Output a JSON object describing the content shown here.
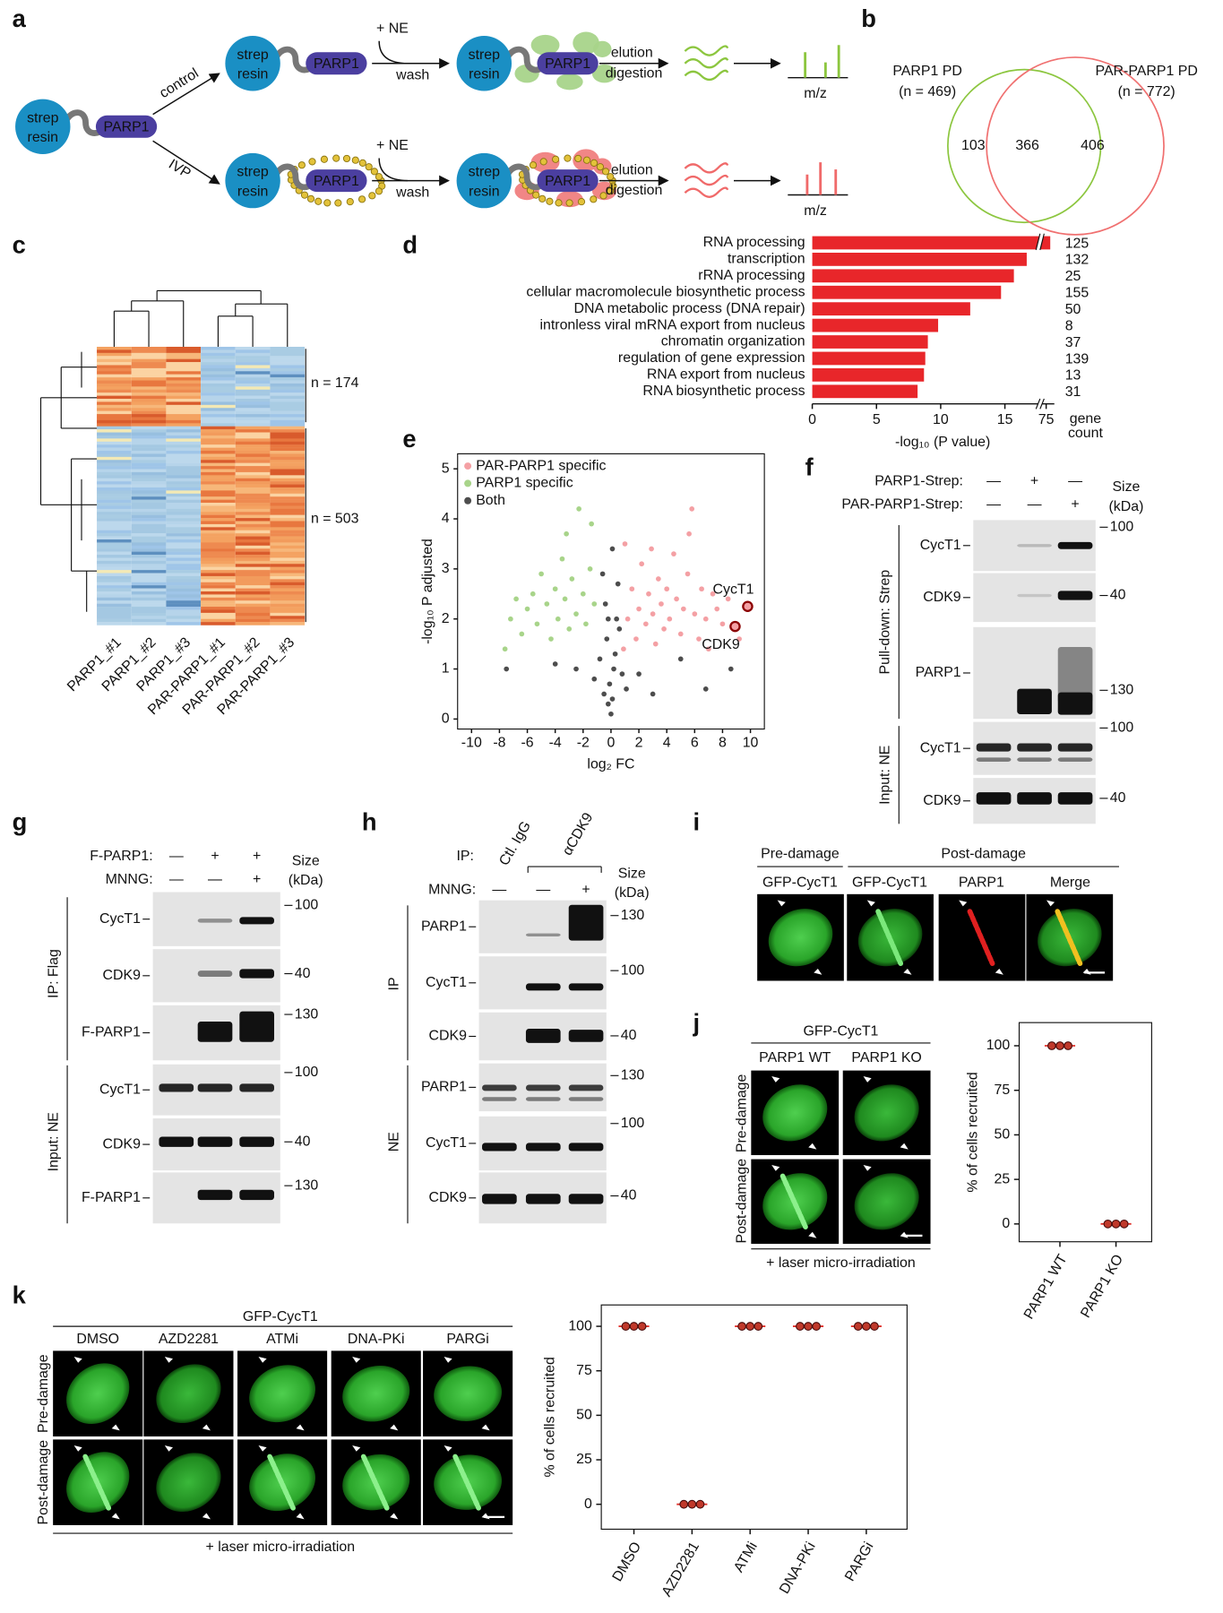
{
  "letters": [
    "a",
    "b",
    "c",
    "d",
    "e",
    "f",
    "g",
    "h",
    "i",
    "j",
    "k"
  ],
  "a": {
    "strep": "strep",
    "resin": "resin",
    "parp1": "PARP1",
    "control": "control",
    "ivp": "IVP",
    "ne": "+ NE",
    "wash": "wash",
    "elution": "elution",
    "digestion": "digestion",
    "mz": "m/z"
  },
  "b": {
    "left_title": "PARP1 PD",
    "left_n": "(n = 469)",
    "right_title": "PAR-PARP1 PD",
    "right_n": "(n = 772)",
    "only_left": 103,
    "both": 366,
    "only_right": 406
  },
  "c": {
    "columns": [
      "PARP1_#1",
      "PARP1_#2",
      "PARP1_#3",
      "PAR-PARP1_#1",
      "PAR-PARP1_#2",
      "PAR-PARP1_#3"
    ],
    "clusters": [
      "n = 174",
      "n = 503"
    ]
  },
  "f": {
    "rows": [
      "PARP1-Strep:",
      "PAR-PARP1-Strep:"
    ],
    "signs": [
      [
        "—",
        "+",
        "—"
      ],
      [
        "—",
        "—",
        "+"
      ]
    ],
    "size": "Size",
    "kda": "(kDa)",
    "groups": [
      "Pull-down: Strep",
      "Input: NE"
    ],
    "blots": [
      "CycT1",
      "CDK9",
      "PARP1",
      "CycT1",
      "CDK9"
    ],
    "markers": [
      100,
      40,
      130,
      100,
      40
    ]
  },
  "g": {
    "rows": [
      "F-PARP1:",
      "MNNG:"
    ],
    "signs": [
      [
        "—",
        "+",
        "+"
      ],
      [
        "—",
        "—",
        "+"
      ]
    ],
    "size": "Size",
    "kda": "(kDa)",
    "groups": [
      "IP: Flag",
      "Input: NE"
    ],
    "blots": [
      "CycT1",
      "CDK9",
      "F-PARP1",
      "CycT1",
      "CDK9",
      "F-PARP1"
    ],
    "markers": [
      100,
      40,
      130,
      100,
      40,
      130
    ]
  },
  "h": {
    "ip": "IP:",
    "lanes": [
      "Ctl. IgG",
      "αCDK9"
    ],
    "rows": [
      "MNNG:"
    ],
    "signs": [
      [
        "—",
        "—",
        "+"
      ]
    ],
    "size": "Size",
    "kda": "(kDa)",
    "groups": [
      "IP",
      "NE"
    ],
    "blots": [
      "PARP1",
      "CycT1",
      "CDK9",
      "PARP1",
      "CycT1",
      "CDK9"
    ],
    "markers": [
      130,
      100,
      40,
      130,
      100,
      40
    ]
  },
  "i": {
    "pre": "Pre-damage",
    "post": "Post-damage",
    "columns": [
      "GFP-CycT1",
      "GFP-CycT1",
      "PARP1",
      "Merge"
    ]
  },
  "j": {
    "title": "GFP-CycT1",
    "columns": [
      "PARP1 WT",
      "PARP1 KO"
    ],
    "rows": [
      "Pre-damage",
      "Post-damage"
    ],
    "caption": "+ laser micro-irradiation"
  },
  "k": {
    "title": "GFP-CycT1",
    "columns": [
      "DMSO",
      "AZD2281",
      "ATMi",
      "DNA-PKi",
      "PARGi"
    ],
    "rows": [
      "Pre-damage",
      "Post-damage"
    ],
    "caption": "+ laser micro-irradiation"
  },
  "chart_data": [
    {
      "type": "bar",
      "orientation": "horizontal",
      "categories": [
        "RNA processing",
        "transcription",
        "rRNA processing",
        "cellular macromolecule biosynthetic process",
        "DNA metabolic process (DNA repair)",
        "intronless viral mRNA export from nucleus",
        "chromatin organization",
        "regulation of gene expression",
        "RNA export from nucleus",
        "RNA biosynthetic process"
      ],
      "values": [
        76,
        16.7,
        15.7,
        14.7,
        12.3,
        9.8,
        9.0,
        8.8,
        8.7,
        8.2
      ],
      "gene_counts": [
        125,
        132,
        25,
        155,
        50,
        8,
        37,
        139,
        13,
        31
      ],
      "color": "#e8262a",
      "x_label": "-log₁₀ (P value)",
      "count_label": [
        "gene",
        "count"
      ],
      "xlim": [
        0,
        77
      ],
      "xticks": [
        0,
        5,
        10,
        15,
        75
      ],
      "axis_break": [
        17.5,
        74
      ]
    },
    {
      "type": "scatter",
      "legend": "top-left",
      "x_label": "log₂ FC",
      "y_label": "-log₁₀ P adjusted",
      "xlim": [
        -11,
        11
      ],
      "ylim": [
        -0.2,
        5.3
      ],
      "xticks": [
        -10,
        -8,
        -6,
        -4,
        -2,
        0,
        2,
        4,
        6,
        8,
        10
      ],
      "yticks": [
        0,
        1,
        2,
        3,
        4,
        5
      ],
      "series": [
        {
          "name": "PAR-PARP1 specific",
          "color": "#f4a0a4",
          "x": [
            1.2,
            1.5,
            1.8,
            2.0,
            2.2,
            2.5,
            2.7,
            3.0,
            3.2,
            3.4,
            3.6,
            3.8,
            4.0,
            4.2,
            4.5,
            4.7,
            5.0,
            5.2,
            5.5,
            5.8,
            6.0,
            6.3,
            6.5,
            6.8,
            7.0,
            7.3,
            7.6,
            8.0,
            8.4,
            9.2,
            1.0,
            2.9,
            5.6,
            0.9
          ],
          "y": [
            2.0,
            2.6,
            1.6,
            2.2,
            3.1,
            1.9,
            2.5,
            2.1,
            1.5,
            2.8,
            2.3,
            1.8,
            2.6,
            2.0,
            3.3,
            2.4,
            1.7,
            2.2,
            2.9,
            4.2,
            2.1,
            1.6,
            2.6,
            2.0,
            1.4,
            2.5,
            2.2,
            1.9,
            2.4,
            1.6,
            3.5,
            3.4,
            3.7,
            1.4
          ]
        },
        {
          "name": "PARP1 specific",
          "color": "#a8d48a",
          "x": [
            -1.2,
            -1.5,
            -1.8,
            -2.0,
            -2.3,
            -2.5,
            -2.8,
            -3.0,
            -3.3,
            -3.5,
            -3.8,
            -4.0,
            -4.3,
            -4.6,
            -5.0,
            -5.3,
            -5.6,
            -6.0,
            -6.4,
            -6.8,
            -7.2,
            -7.6,
            -3.2,
            -1.4
          ],
          "y": [
            2.3,
            3.0,
            1.9,
            2.5,
            4.2,
            2.1,
            2.8,
            1.8,
            2.4,
            3.2,
            2.0,
            2.6,
            1.6,
            2.3,
            2.9,
            1.9,
            2.5,
            2.2,
            1.7,
            2.4,
            2.0,
            1.4,
            3.7,
            3.9
          ]
        },
        {
          "name": "Both",
          "color": "#4d4d4d",
          "x": [
            0,
            0.1,
            -0.1,
            0.2,
            -0.2,
            0.3,
            -0.3,
            0.4,
            -0.4,
            0.5,
            -0.5,
            0.6,
            -0.6,
            0.8,
            -0.8,
            1.1,
            -1.2,
            2.0,
            -2.5,
            3.0,
            -4.0,
            5.0,
            6.8,
            -7.5,
            8.6,
            0.1,
            -0.2
          ],
          "y": [
            0.1,
            0.4,
            0.7,
            1.0,
            0.3,
            1.3,
            1.6,
            2.0,
            2.3,
            2.7,
            0.5,
            1.8,
            2.9,
            0.9,
            1.2,
            0.6,
            0.8,
            0.9,
            1.0,
            0.5,
            1.1,
            1.2,
            0.6,
            1.0,
            1.0,
            3.4,
            2.0
          ]
        }
      ],
      "highlights": [
        {
          "label": "CycT1",
          "x": 9.8,
          "y": 2.25
        },
        {
          "label": "CDK9",
          "x": 8.9,
          "y": 1.85
        }
      ]
    },
    {
      "type": "dot",
      "y_label": "% of cells recruited",
      "categories": [
        "PARP1 WT",
        "PARP1 KO"
      ],
      "values": [
        [
          100,
          100,
          100
        ],
        [
          0,
          0,
          0
        ]
      ],
      "mean_values": [
        100,
        0
      ],
      "color": "#e0302a",
      "ylim": [
        -10,
        113
      ],
      "yticks": [
        0,
        25,
        50,
        75,
        100
      ]
    },
    {
      "type": "dot",
      "y_label": "% of cells recruited",
      "categories": [
        "DMSO",
        "AZD2281",
        "ATMi",
        "DNA-PKi",
        "PARGi"
      ],
      "values": [
        [
          100,
          100,
          100
        ],
        [
          0,
          0,
          0
        ],
        [
          100,
          100,
          100
        ],
        [
          100,
          100,
          100
        ],
        [
          100,
          100,
          100
        ]
      ],
      "mean_values": [
        100,
        0,
        100,
        100,
        100
      ],
      "color": "#e0302a",
      "ylim": [
        -14,
        112
      ],
      "yticks": [
        0,
        25,
        50,
        75,
        100
      ]
    }
  ]
}
